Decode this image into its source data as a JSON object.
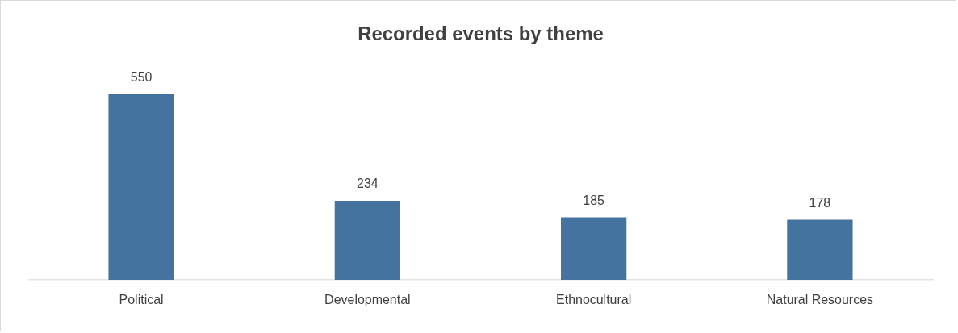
{
  "chart_data": {
    "type": "bar",
    "title": "Recorded events by theme",
    "categories": [
      "Political",
      "Developmental",
      "Ethnocultural",
      "Natural Resources"
    ],
    "values": [
      550,
      234,
      185,
      178
    ],
    "color": "#44739f",
    "data_labels": true,
    "grid": false,
    "legend": false
  }
}
